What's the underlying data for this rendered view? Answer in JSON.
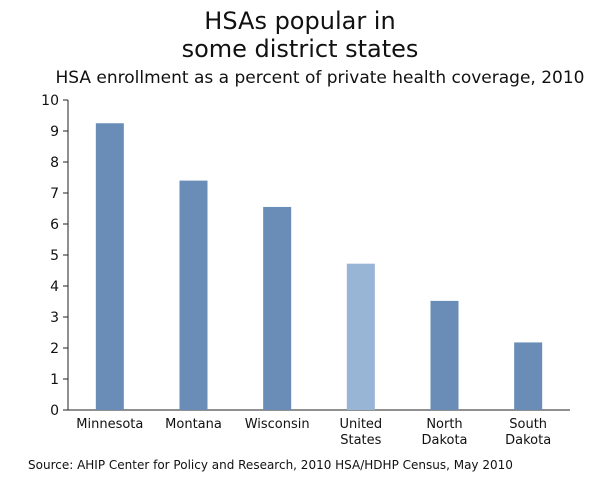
{
  "header": {
    "title_line1": "HSAs popular in",
    "title_line2": "some district states",
    "subtitle": "HSA enrollment as a percent of private health coverage, 2010"
  },
  "footer": {
    "source": "Source: AHIP Center for Policy and Research, 2010 HSA/HDHP Census, May 2010"
  },
  "colors": {
    "bar": "#6a8db8",
    "highlight": "#98b5d6"
  },
  "chart_data": {
    "type": "bar",
    "categories": [
      [
        "Minnesota"
      ],
      [
        "Montana"
      ],
      [
        "Wisconsin"
      ],
      [
        "United",
        "States"
      ],
      [
        "North",
        "Dakota"
      ],
      [
        "South",
        "Dakota"
      ]
    ],
    "values": [
      9.25,
      7.4,
      6.55,
      4.72,
      3.52,
      2.18
    ],
    "highlight_index": 3,
    "ylim": [
      0,
      10
    ],
    "yticks": [
      0,
      1,
      2,
      3,
      4,
      5,
      6,
      7,
      8,
      9,
      10
    ],
    "grid": false
  }
}
